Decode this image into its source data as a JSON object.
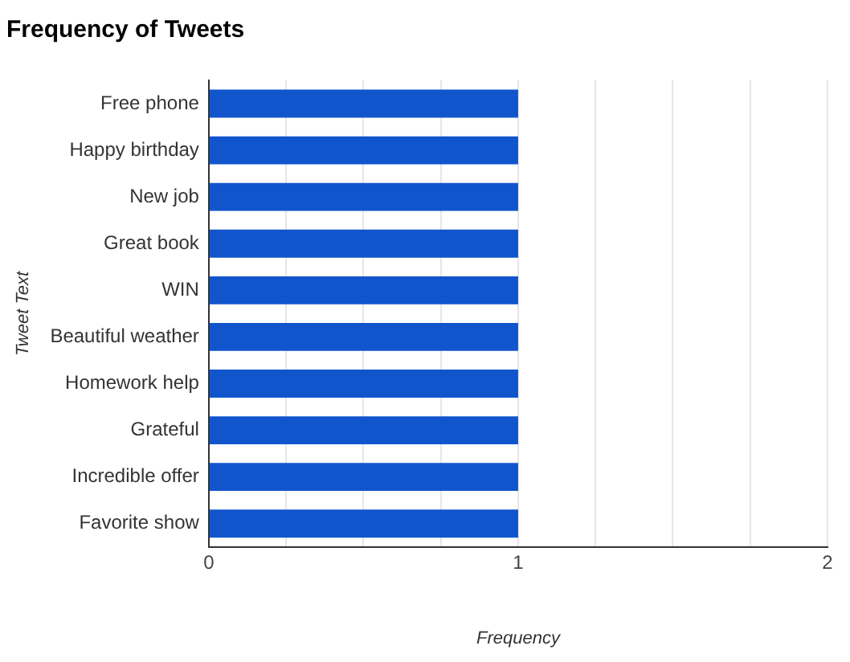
{
  "chart_data": {
    "type": "bar",
    "orientation": "horizontal",
    "title": "Frequency of Tweets",
    "xlabel": "Frequency",
    "ylabel": "Tweet Text",
    "categories": [
      "Free phone",
      "Happy birthday",
      "New job",
      "Great book",
      "WIN",
      "Beautiful weather",
      "Homework help",
      "Grateful",
      "Incredible offer",
      "Favorite show"
    ],
    "values": [
      1,
      1,
      1,
      1,
      1,
      1,
      1,
      1,
      1,
      1
    ],
    "color": "#1155cc",
    "xlim": [
      0,
      2
    ],
    "xticks": [
      0,
      {
        "value": 0.25,
        "label": null
      },
      {
        "value": 0.5,
        "label": null
      },
      {
        "value": 0.75,
        "label": null
      },
      1,
      {
        "value": 1.25,
        "label": null
      },
      {
        "value": 1.5,
        "label": null
      },
      {
        "value": 1.75,
        "label": null
      },
      2
    ],
    "grid": "x",
    "legend": false
  }
}
